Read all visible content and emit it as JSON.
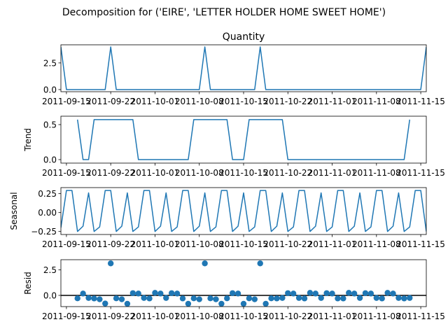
{
  "figure": {
    "suptitle": "Decomposition for ('EIRE', 'LETTER HOLDER HOME SWEET HOME')"
  },
  "chart_data": [
    {
      "type": "line",
      "title": "Quantity",
      "ylabel": "",
      "xlim": [
        0,
        66
      ],
      "ylim": [
        -0.2,
        4.2
      ],
      "yticks": [
        0.0,
        2.5
      ],
      "ytick_labels": [
        "0.0",
        "2.5"
      ],
      "xticks": [
        1,
        9,
        17,
        25,
        33,
        41,
        49,
        57,
        65
      ],
      "xtick_labels": [
        "2011-09-15",
        "2011-09-22",
        "2011-10-01",
        "2011-10-08",
        "2011-10-15",
        "2011-10-22",
        "2011-11-01",
        "2011-11-08",
        "2011-11-15"
      ],
      "color": "#1f77b4",
      "x": [
        0,
        1,
        2,
        3,
        4,
        5,
        6,
        7,
        8,
        9,
        10,
        11,
        12,
        13,
        14,
        15,
        16,
        17,
        18,
        19,
        20,
        21,
        22,
        23,
        24,
        25,
        26,
        27,
        28,
        29,
        30,
        31,
        32,
        33,
        34,
        35,
        36,
        37,
        38,
        39,
        40,
        41,
        42,
        43,
        44,
        45,
        46,
        47,
        48,
        49,
        50,
        51,
        52,
        53,
        54,
        55,
        56,
        57,
        58,
        59,
        60,
        61,
        62,
        63,
        64,
        65,
        66
      ],
      "values": [
        4,
        0,
        0,
        0,
        0,
        0,
        0,
        0,
        0,
        4,
        0,
        0,
        0,
        0,
        0,
        0,
        0,
        0,
        0,
        0,
        0,
        0,
        0,
        0,
        0,
        0,
        4,
        0,
        0,
        0,
        0,
        0,
        0,
        0,
        0,
        0,
        4,
        0,
        0,
        0,
        0,
        0,
        0,
        0,
        0,
        0,
        0,
        0,
        0,
        0,
        0,
        0,
        0,
        0,
        0,
        0,
        0,
        0,
        0,
        0,
        0,
        0,
        0,
        0,
        0,
        0,
        4
      ]
    },
    {
      "type": "line",
      "title": "",
      "ylabel": "Trend",
      "xlim": [
        0,
        66
      ],
      "ylim": [
        -0.05,
        0.62
      ],
      "yticks": [
        0.0,
        0.5
      ],
      "ytick_labels": [
        "0.0",
        "0.5"
      ],
      "xticks": [
        1,
        9,
        17,
        25,
        33,
        41,
        49,
        57,
        65
      ],
      "xtick_labels": [
        "2011-09-15",
        "2011-09-22",
        "2011-10-01",
        "2011-10-08",
        "2011-10-15",
        "2011-10-22",
        "2011-11-01",
        "2011-11-08",
        "2011-11-15"
      ],
      "color": "#1f77b4",
      "x": [
        3,
        4,
        5,
        6,
        7,
        8,
        9,
        10,
        11,
        12,
        13,
        14,
        15,
        16,
        17,
        18,
        19,
        20,
        21,
        22,
        23,
        24,
        25,
        26,
        27,
        28,
        29,
        30,
        31,
        32,
        33,
        34,
        35,
        36,
        37,
        38,
        39,
        40,
        41,
        42,
        43,
        44,
        45,
        46,
        47,
        48,
        49,
        50,
        51,
        52,
        53,
        54,
        55,
        56,
        57,
        58,
        59,
        60,
        61,
        62,
        63
      ],
      "values": [
        0.571,
        0,
        0,
        0.571,
        0.571,
        0.571,
        0.571,
        0.571,
        0.571,
        0.571,
        0.571,
        0,
        0,
        0,
        0,
        0,
        0,
        0,
        0,
        0,
        0,
        0.571,
        0.571,
        0.571,
        0.571,
        0.571,
        0.571,
        0.571,
        0,
        0,
        0,
        0.571,
        0.571,
        0.571,
        0.571,
        0.571,
        0.571,
        0.571,
        0,
        0,
        0,
        0,
        0,
        0,
        0,
        0,
        0,
        0,
        0,
        0,
        0,
        0,
        0,
        0,
        0,
        0,
        0,
        0,
        0,
        0,
        0.571
      ]
    },
    {
      "type": "line",
      "title": "",
      "ylabel": "Seasonal",
      "xlim": [
        0,
        66
      ],
      "ylim": [
        -0.29,
        0.33
      ],
      "yticks": [
        -0.25,
        0.0,
        0.25
      ],
      "ytick_labels": [
        "−0.25",
        "0.00",
        "0.25"
      ],
      "xticks": [
        1,
        9,
        17,
        25,
        33,
        41,
        49,
        57,
        65
      ],
      "xtick_labels": [
        "2011-09-15",
        "2011-09-22",
        "2011-10-01",
        "2011-10-08",
        "2011-10-15",
        "2011-10-22",
        "2011-11-01",
        "2011-11-08",
        "2011-11-15"
      ],
      "color": "#1f77b4",
      "pattern": [
        0.292,
        0.292,
        -0.25,
        -0.18,
        0.26,
        -0.25,
        -0.19
      ],
      "x_start": 0,
      "x_end": 66,
      "start_value": -0.2
    },
    {
      "type": "scatter",
      "title": "",
      "ylabel": "Resid",
      "xlim": [
        0,
        66
      ],
      "ylim": [
        -1.1,
        3.5
      ],
      "yticks": [
        0.0,
        2.5
      ],
      "ytick_labels": [
        "0.0",
        "2.5"
      ],
      "xticks": [
        1,
        9,
        17,
        25,
        33,
        41,
        49,
        57,
        65
      ],
      "xtick_labels": [
        "2011-09-15",
        "2011-09-22",
        "2011-10-01",
        "2011-10-08",
        "2011-10-15",
        "2011-10-22",
        "2011-11-01",
        "2011-11-08",
        "2011-11-15"
      ],
      "color": "#1f77b4",
      "hline": 0,
      "x": [
        3,
        4,
        5,
        6,
        7,
        8,
        9,
        10,
        11,
        12,
        13,
        14,
        15,
        16,
        17,
        18,
        19,
        20,
        21,
        22,
        23,
        24,
        25,
        26,
        27,
        28,
        29,
        30,
        31,
        32,
        33,
        34,
        35,
        36,
        37,
        38,
        39,
        40,
        41,
        42,
        43,
        44,
        45,
        46,
        47,
        48,
        49,
        50,
        51,
        52,
        53,
        54,
        55,
        56,
        57,
        58,
        59,
        60,
        61,
        62,
        63
      ],
      "values": [
        -0.29,
        0.18,
        -0.25,
        -0.3,
        -0.38,
        -0.8,
        3.14,
        -0.29,
        -0.38,
        -0.82,
        0.22,
        0.18,
        -0.25,
        -0.3,
        0.25,
        0.18,
        -0.25,
        0.22,
        0.18,
        -0.3,
        -0.82,
        -0.29,
        -0.38,
        3.14,
        -0.29,
        -0.38,
        -0.82,
        -0.29,
        0.22,
        0.18,
        -0.82,
        -0.29,
        -0.38,
        3.14,
        -0.82,
        -0.29,
        -0.3,
        -0.25,
        0.22,
        0.18,
        -0.25,
        -0.3,
        0.25,
        0.18,
        -0.25,
        0.22,
        0.18,
        -0.3,
        -0.3,
        0.25,
        0.18,
        -0.25,
        0.22,
        0.18,
        -0.25,
        -0.3,
        0.25,
        0.18,
        -0.25,
        -0.3,
        -0.25
      ]
    }
  ]
}
